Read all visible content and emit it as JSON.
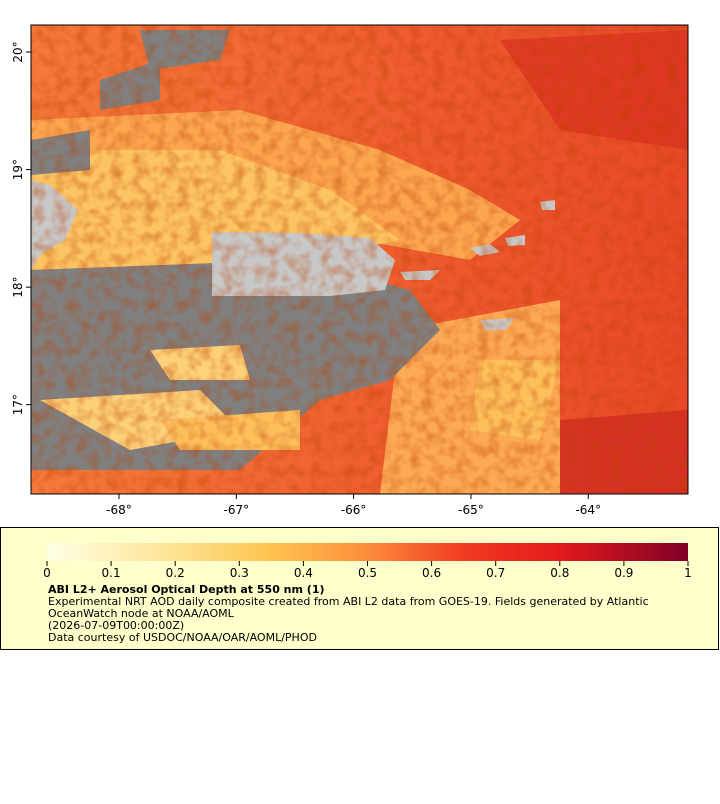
{
  "map": {
    "xlim": [
      -68.75,
      -63.15
    ],
    "ylim": [
      16.24,
      20.23
    ],
    "lat_ticks": [
      {
        "value": 20,
        "label": "20°"
      },
      {
        "value": 19,
        "label": "19°"
      },
      {
        "value": 18,
        "label": "18°"
      },
      {
        "value": 17,
        "label": "17°"
      }
    ],
    "lon_ticks": [
      {
        "value": -68,
        "label": "-68°"
      },
      {
        "value": -67,
        "label": "-67°"
      },
      {
        "value": -66,
        "label": "-66°"
      },
      {
        "value": -65,
        "label": "-65°"
      },
      {
        "value": -64,
        "label": "-64°"
      }
    ]
  },
  "colorbar": {
    "lim": [
      0,
      1
    ],
    "ticks": [
      0,
      0.1,
      0.2,
      0.3,
      0.4,
      0.5,
      0.6,
      0.7,
      0.8,
      0.9,
      1
    ]
  },
  "legend": {
    "title": "ABI L2+ Aerosol Optical Depth at 550 nm (1)",
    "description": [
      "Experimental NRT AOD daily composite created from ABI L2 data from GOES-19. Fields generated by Atlantic",
      "OceanWatch node at NOAA/AOML"
    ],
    "time": "(2026-07-09T00:00:00Z)",
    "credit": "Data courtesy of USDOC/NOAA/OAR/AOML/PHOD"
  }
}
